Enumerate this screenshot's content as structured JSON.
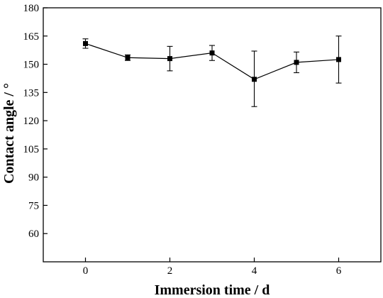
{
  "chart_data": {
    "type": "line",
    "xlabel": "Immersion time / d",
    "ylabel": "Contact angle / °",
    "xlim": [
      -1,
      7
    ],
    "ylim": [
      45,
      180
    ],
    "xticks": [
      0,
      2,
      4,
      6
    ],
    "yticks": [
      60,
      75,
      90,
      105,
      120,
      135,
      150,
      165,
      180
    ],
    "series": [
      {
        "x": [
          0,
          1,
          2,
          3,
          4,
          5,
          6
        ],
        "y": [
          161,
          153.5,
          153,
          156,
          142,
          151,
          152.5
        ],
        "err_low": [
          158.5,
          152,
          146.5,
          152,
          127.5,
          145.5,
          140
        ],
        "err_high": [
          163.5,
          155,
          159.5,
          160,
          157,
          156.5,
          165
        ]
      }
    ],
    "marker": "square",
    "grid": false,
    "legend": "none"
  }
}
